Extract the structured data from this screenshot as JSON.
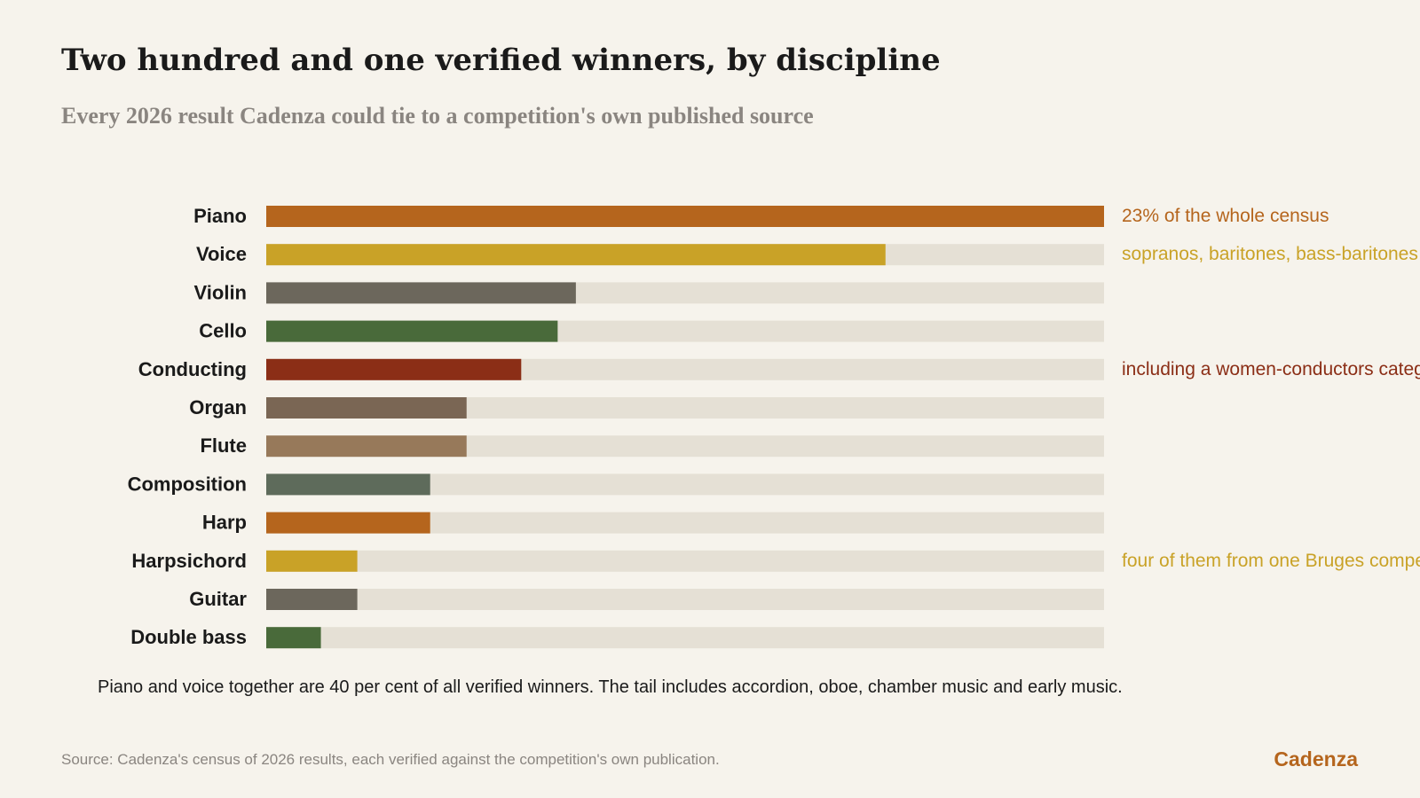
{
  "header": {
    "title": "Two hundred and one verified winners, by discipline",
    "subtitle": "Every 2026 result Cadenza could tie to a competition's own published source"
  },
  "chart_data": {
    "type": "bar",
    "orientation": "horizontal",
    "categories": [
      "Piano",
      "Voice",
      "Violin",
      "Cello",
      "Conducting",
      "Organ",
      "Flute",
      "Composition",
      "Harp",
      "Harpsichord",
      "Guitar",
      "Double bass"
    ],
    "values": [
      46,
      34,
      17,
      16,
      14,
      11,
      11,
      9,
      9,
      5,
      5,
      3
    ],
    "xlim": [
      0,
      46
    ],
    "colors": [
      "#b5651d",
      "#c9a227",
      "#6c675c",
      "#496a3a",
      "#8b2e16",
      "#7a6654",
      "#97795a",
      "#5e6b5b",
      "#b5651d",
      "#c9a227",
      "#6c675c",
      "#496a3a"
    ],
    "track_color": "#e5e0d5",
    "annotations": [
      {
        "category": "Piano",
        "text": "23% of the whole census",
        "color": "#b5651d"
      },
      {
        "category": "Voice",
        "text": "sopranos, baritones, bass-baritones",
        "color": "#c9a227"
      },
      {
        "category": "Conducting",
        "text": "including a women-conductors category",
        "color": "#8b2e16"
      },
      {
        "category": "Harpsichord",
        "text": "four of them from one Bruges competition",
        "color": "#c9a227"
      }
    ],
    "grid": false,
    "legend": "none"
  },
  "footer": {
    "note": "Piano and voice together are 40 per cent of all verified winners. The tail includes accordion, oboe, chamber music and early music.",
    "source": "Source: Cadenza's census of 2026 results, each verified against the competition's own publication.",
    "brand": "Cadenza"
  }
}
